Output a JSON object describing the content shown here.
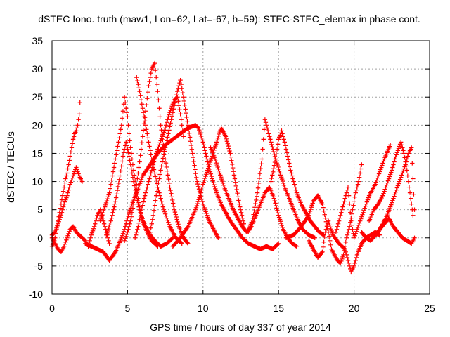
{
  "chart_data": {
    "type": "scatter",
    "title": "dSTEC Iono. truth (maw1, Lon=62, Lat=-67, h=59): STEC-STEC_elemax in phase cont.",
    "xlabel": "GPS time / hours of day 337 of year 2014",
    "ylabel": "dSTEC  / TECUs",
    "xlim": [
      0,
      25
    ],
    "ylim": [
      -10,
      35
    ],
    "xticks": [
      0,
      5,
      10,
      15,
      20,
      25
    ],
    "yticks": [
      -10,
      -5,
      0,
      5,
      10,
      15,
      20,
      25,
      30,
      35
    ],
    "xtick_labels": [
      "0",
      "5",
      "10",
      "15",
      "20",
      "25"
    ],
    "ytick_labels": [
      "-10",
      "-5",
      "0",
      "5",
      "10",
      "15",
      "20",
      "25",
      "30",
      "35"
    ],
    "grid": true,
    "legend": "none",
    "marker": "plus",
    "color": "#ff0000",
    "series": [
      {
        "x": [
          0.0,
          0.1,
          0.2,
          0.3,
          0.4,
          0.5,
          0.6,
          0.7,
          0.8,
          0.9,
          1.0,
          1.1,
          1.2,
          1.3,
          1.4,
          1.5,
          1.6,
          1.7,
          1.8,
          1.85
        ],
        "y": [
          -1.5,
          -1.0,
          0.0,
          1.5,
          3.0,
          4.5,
          6.0,
          7.5,
          9.0,
          10.5,
          11.5,
          13.0,
          14.5,
          16.0,
          17.5,
          18.5,
          19.0,
          20.0,
          22.0,
          24.0
        ]
      },
      {
        "x": [
          0.0,
          0.2,
          0.4,
          0.6,
          0.8,
          1.0,
          1.2,
          1.4,
          1.6,
          1.8,
          2.0
        ],
        "y": [
          0.5,
          1.0,
          2.5,
          4.0,
          6.0,
          7.5,
          9.5,
          11.0,
          12.5,
          11.0,
          10.0
        ]
      },
      {
        "x": [
          0.0,
          0.2,
          0.4,
          0.6,
          0.8,
          1.0,
          1.2,
          1.4,
          1.6,
          1.8,
          2.0,
          2.2,
          2.4,
          2.6,
          2.8,
          3.0,
          3.2,
          3.4,
          3.6,
          3.8
        ],
        "y": [
          0.0,
          -1.0,
          -2.0,
          -2.5,
          -1.5,
          0.0,
          1.5,
          2.0,
          1.0,
          0.5,
          0.0,
          -0.5,
          -1.5,
          0.5,
          2.0,
          4.0,
          5.0,
          3.0,
          1.0,
          -1.0
        ]
      },
      {
        "x": [
          2.2,
          2.6,
          3.0,
          3.4,
          3.8,
          4.2,
          4.6,
          4.8,
          5.0,
          5.3,
          5.6,
          6.0,
          6.5,
          7.0,
          7.5,
          8.0,
          8.5,
          9.0,
          9.5,
          9.7
        ],
        "y": [
          -1.0,
          -1.5,
          -2.0,
          -2.5,
          -4.0,
          -2.5,
          0.0,
          1.5,
          3.5,
          6.0,
          8.0,
          11.0,
          13.0,
          15.0,
          16.5,
          17.5,
          18.5,
          19.5,
          20.0,
          19.5
        ]
      },
      {
        "x": [
          3.2,
          3.5,
          3.8,
          4.0,
          4.2,
          4.4,
          4.6,
          4.7,
          4.8,
          4.9,
          5.0,
          5.1,
          5.2,
          5.4,
          5.6,
          5.8,
          6.0,
          6.3,
          6.6,
          7.0
        ],
        "y": [
          3.0,
          5.5,
          8.0,
          11.0,
          14.0,
          17.0,
          20.0,
          22.5,
          25.0,
          23.0,
          21.5,
          18.5,
          16.0,
          12.0,
          8.5,
          5.5,
          3.0,
          1.0,
          -0.5,
          -1.5
        ]
      },
      {
        "x": [
          3.6,
          3.9,
          4.2,
          4.5,
          4.7,
          4.9,
          5.1,
          5.3,
          5.5,
          5.7,
          5.9,
          6.2,
          6.5,
          6.8,
          7.2,
          7.6,
          8.0
        ],
        "y": [
          0.5,
          3.0,
          6.5,
          11.0,
          14.5,
          17.0,
          14.5,
          11.5,
          8.5,
          6.0,
          4.0,
          2.0,
          0.5,
          -0.5,
          -1.5,
          -1.0,
          0.0
        ]
      },
      {
        "x": [
          6.5,
          6.7,
          6.9,
          7.1,
          7.3,
          7.5,
          7.7,
          7.9,
          8.1,
          8.3,
          8.5,
          8.7,
          9.0,
          9.3,
          9.6,
          10.0,
          10.4,
          10.8,
          11.0
        ],
        "y": [
          1.0,
          4.0,
          7.5,
          10.5,
          13.5,
          16.0,
          18.5,
          21.0,
          23.5,
          26.0,
          28.0,
          25.0,
          20.0,
          15.0,
          10.0,
          6.0,
          3.0,
          1.0,
          0.0
        ]
      },
      {
        "x": [
          4.8,
          5.0,
          5.2,
          5.4,
          5.6,
          5.8,
          6.0,
          6.2,
          6.4,
          6.6,
          6.8,
          7.0,
          7.2,
          7.5,
          7.8,
          8.1,
          8.4,
          8.7,
          9.0
        ],
        "y": [
          -0.5,
          1.0,
          3.0,
          6.0,
          9.5,
          13.5,
          18.0,
          22.5,
          27.0,
          30.0,
          31.0,
          26.0,
          20.0,
          14.0,
          9.0,
          5.0,
          2.0,
          0.0,
          -1.0
        ]
      },
      {
        "x": [
          5.5,
          5.7,
          5.9,
          6.1,
          6.3,
          6.5,
          6.7,
          6.9,
          7.1,
          7.3,
          7.5,
          7.7,
          7.9,
          8.1,
          8.3,
          8.5,
          8.7
        ],
        "y": [
          0.0,
          2.0,
          4.5,
          7.0,
          9.0,
          11.0,
          13.0,
          15.0,
          16.5,
          18.0,
          19.5,
          21.5,
          23.0,
          24.5,
          25.0,
          22.0,
          18.0
        ]
      },
      {
        "x": [
          5.6,
          5.8,
          6.0,
          6.2,
          6.4,
          6.6,
          6.8,
          7.0,
          7.2,
          7.4,
          7.6,
          7.8,
          8.0,
          8.2,
          8.4,
          8.6
        ],
        "y": [
          28.5,
          26.0,
          23.0,
          20.0,
          17.0,
          14.0,
          11.5,
          9.0,
          7.0,
          5.0,
          3.5,
          2.0,
          1.0,
          0.0,
          -0.5,
          -1.0
        ]
      },
      {
        "x": [
          8.0,
          8.5,
          9.0,
          9.5,
          9.8,
          10.0,
          10.3,
          10.6,
          10.9,
          11.2,
          11.5,
          11.8,
          12.1,
          12.4,
          12.7
        ],
        "y": [
          -1.5,
          0.0,
          2.0,
          5.0,
          7.5,
          9.5,
          12.0,
          14.5,
          17.0,
          19.5,
          18.0,
          15.0,
          10.5,
          6.0,
          2.5
        ]
      },
      {
        "x": [
          9.7,
          10.0,
          10.3,
          10.6,
          10.9,
          11.2,
          11.5,
          11.8,
          12.2,
          12.6,
          13.0,
          13.4,
          13.8,
          14.2,
          14.6,
          15.0
        ],
        "y": [
          19.5,
          17.0,
          13.5,
          10.5,
          8.0,
          6.0,
          4.5,
          3.0,
          1.5,
          0.0,
          -1.0,
          -1.5,
          -2.0,
          -1.5,
          -2.0,
          -1.0
        ]
      },
      {
        "x": [
          10.5,
          10.8,
          11.1,
          11.4,
          11.7,
          12.0,
          12.3,
          12.6,
          12.9,
          13.2,
          13.5,
          13.8,
          14.1,
          14.4,
          14.7,
          15.0,
          15.3,
          15.6,
          15.9,
          16.2
        ],
        "y": [
          16.0,
          14.0,
          11.5,
          9.0,
          7.0,
          5.0,
          3.5,
          2.0,
          1.0,
          2.0,
          4.0,
          6.0,
          8.0,
          9.0,
          7.0,
          4.0,
          1.5,
          0.0,
          -1.0,
          -1.5
        ]
      },
      {
        "x": [
          13.0,
          13.3,
          13.6,
          13.9,
          14.1,
          14.3,
          14.5,
          14.8,
          15.1,
          15.4,
          15.7,
          16.0,
          16.3,
          16.6,
          17.0,
          17.4
        ],
        "y": [
          1.0,
          3.5,
          8.0,
          14.0,
          21.0,
          19.0,
          17.0,
          14.0,
          11.5,
          9.0,
          7.0,
          5.0,
          3.0,
          1.5,
          0.5,
          0.0
        ]
      },
      {
        "x": [
          14.5,
          14.8,
          15.0,
          15.2,
          15.4,
          15.6,
          15.8,
          16.0,
          16.2,
          16.5,
          16.8,
          17.1,
          17.4,
          17.7,
          18.0
        ],
        "y": [
          10.0,
          14.0,
          17.5,
          19.0,
          17.0,
          14.5,
          12.0,
          10.0,
          8.0,
          6.0,
          4.5,
          3.0,
          2.0,
          1.0,
          0.5
        ]
      },
      {
        "x": [
          15.5,
          16.0,
          16.5,
          17.0,
          17.3,
          17.6,
          17.9,
          18.1,
          18.3,
          18.5,
          18.7,
          18.9,
          19.1,
          19.3,
          19.5,
          19.7,
          19.9,
          20.1,
          20.3,
          20.5
        ],
        "y": [
          0.0,
          0.5,
          2.0,
          4.0,
          6.5,
          7.5,
          6.0,
          3.5,
          1.0,
          -2.0,
          -3.0,
          -4.0,
          -4.5,
          -3.0,
          0.0,
          2.0,
          5.0,
          8.0,
          10.0,
          13.0
        ]
      },
      {
        "x": [
          17.0,
          17.3,
          17.6,
          17.9,
          18.1,
          18.3,
          18.6,
          19.0,
          19.4,
          19.6,
          19.8,
          20.0,
          20.2,
          20.5,
          20.8,
          21.1,
          21.4,
          21.7
        ],
        "y": [
          -0.5,
          -2.0,
          -3.5,
          -2.5,
          1.0,
          3.0,
          0.5,
          -1.0,
          -2.0,
          -4.0,
          -6.0,
          -5.0,
          -3.0,
          -1.0,
          0.0,
          0.5,
          1.0,
          0.5
        ]
      },
      {
        "x": [
          20.5,
          20.8,
          21.1,
          21.4,
          21.7,
          22.0,
          22.3,
          22.6,
          22.9,
          23.2,
          23.5,
          23.8,
          24.0
        ],
        "y": [
          1.0,
          0.0,
          -0.5,
          0.5,
          1.5,
          2.5,
          3.5,
          2.0,
          1.0,
          0.0,
          -0.5,
          -1.0,
          0.0
        ]
      },
      {
        "x": [
          21.0,
          21.3,
          21.6,
          21.9,
          22.1,
          22.3,
          22.5,
          22.7,
          22.9,
          23.1,
          23.3,
          23.5,
          23.7,
          23.9
        ],
        "y": [
          3.0,
          5.0,
          6.0,
          7.5,
          9.0,
          10.5,
          12.0,
          14.0,
          15.5,
          17.0,
          15.0,
          12.0,
          8.0,
          4.0
        ]
      },
      {
        "x": [
          21.5,
          21.8,
          22.1,
          22.4,
          22.6,
          22.8,
          23.0,
          23.2,
          23.4,
          23.6,
          23.8,
          24.0
        ],
        "y": [
          0.5,
          2.0,
          3.5,
          5.5,
          7.0,
          8.5,
          10.0,
          11.5,
          13.0,
          15.0,
          16.0,
          5.0
        ]
      },
      {
        "x": [
          18.8,
          19.0,
          19.2,
          19.4,
          19.6,
          19.8,
          20.0,
          20.2,
          20.4,
          20.6,
          20.8,
          21.0,
          21.2,
          21.4,
          21.6,
          21.8,
          22.0,
          22.4
        ],
        "y": [
          1.0,
          3.0,
          5.0,
          7.0,
          9.0,
          3.0,
          0.0,
          1.5,
          3.0,
          4.5,
          6.0,
          7.5,
          8.5,
          9.5,
          11.0,
          12.5,
          14.0,
          16.5
        ]
      }
    ]
  }
}
